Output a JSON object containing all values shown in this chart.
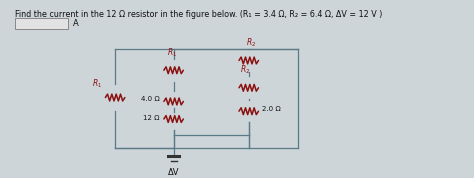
{
  "title": "Find the current in the 12 Ω resistor in the figure below. (R₁ = 3.4 Ω, R₂ = 6.4 Ω, ΔV = 12 V )",
  "bg_color": "#cdd5d8",
  "resistor_color": "#8B1010",
  "wire_color": "#5a7a8a",
  "text_color": "#111111",
  "label_color": "#8B1010",
  "res_lw": 1.1,
  "wire_lw": 0.9
}
